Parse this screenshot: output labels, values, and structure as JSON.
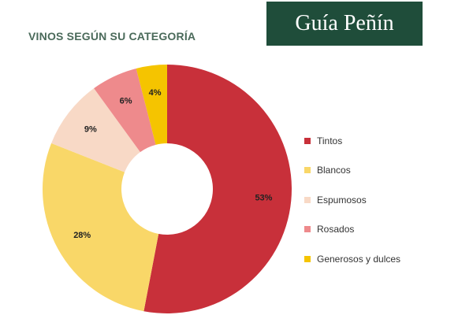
{
  "brand": {
    "logo_text": "Guía Peñín"
  },
  "chart_data": {
    "type": "pie",
    "title": "VINOS SEGÚN SU CATEGORÍA",
    "donut": true,
    "legend_position": "right",
    "categories": [
      "Tintos",
      "Blancos",
      "Espumosos",
      "Rosados",
      "Generosos y dulces"
    ],
    "values": [
      53,
      28,
      9,
      6,
      4
    ],
    "labels": [
      "53%",
      "28%",
      "9%",
      "6%",
      "4%"
    ],
    "colors": [
      "#c8303a",
      "#f9d768",
      "#f8d9c6",
      "#ee8a8c",
      "#f5c400"
    ]
  }
}
